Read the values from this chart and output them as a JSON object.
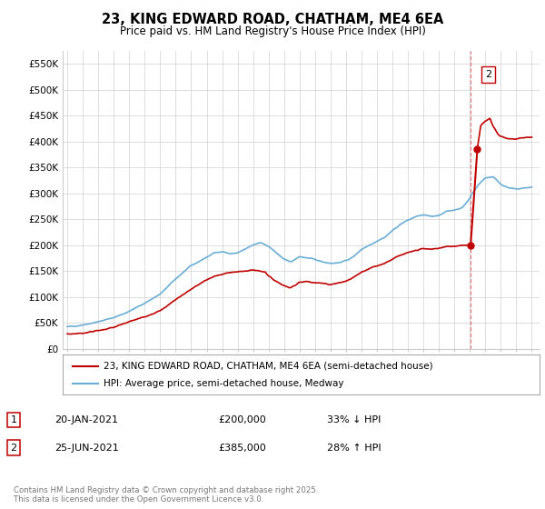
{
  "title": "23, KING EDWARD ROAD, CHATHAM, ME4 6EA",
  "subtitle": "Price paid vs. HM Land Registry's House Price Index (HPI)",
  "ylabel_ticks": [
    "£0",
    "£50K",
    "£100K",
    "£150K",
    "£200K",
    "£250K",
    "£300K",
    "£350K",
    "£400K",
    "£450K",
    "£500K",
    "£550K"
  ],
  "ytick_values": [
    0,
    50000,
    100000,
    150000,
    200000,
    250000,
    300000,
    350000,
    400000,
    450000,
    500000,
    550000
  ],
  "ylim": [
    0,
    575000
  ],
  "xlim_left": 1994.7,
  "xlim_right": 2025.5,
  "hpi_color": "#6aaed6",
  "price_color": "#c00000",
  "dashed_line_color": "#e06060",
  "dashed_line_x": 2021.05,
  "background_color": "#ffffff",
  "grid_color": "#d8d8d8",
  "t1_x": 2021.05,
  "t1_y": 200000,
  "t2_x": 2021.48,
  "t2_y": 385000,
  "transaction1": {
    "date": "20-JAN-2021",
    "price": "£200,000",
    "pct": "33% ↓ HPI"
  },
  "transaction2": {
    "date": "25-JUN-2021",
    "price": "£385,000",
    "pct": "28% ↑ HPI"
  },
  "legend_label1": "23, KING EDWARD ROAD, CHATHAM, ME4 6EA (semi-detached house)",
  "legend_label2": "HPI: Average price, semi-detached house, Medway",
  "footer": "Contains HM Land Registry data © Crown copyright and database right 2025.\nThis data is licensed under the Open Government Licence v3.0."
}
